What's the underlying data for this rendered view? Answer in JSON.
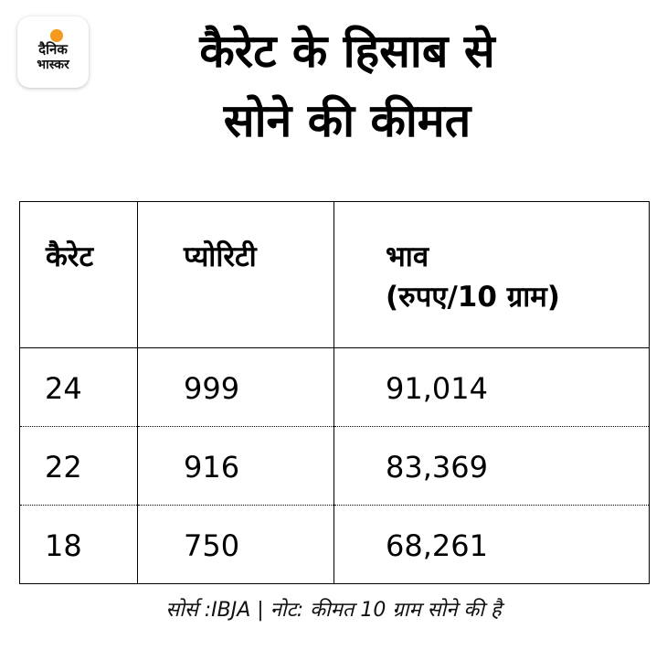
{
  "logo": {
    "line1": "दैनिक",
    "line2": "भास्कर",
    "accent_color": "#f39a1f"
  },
  "title": {
    "line1": "कैरेट के हिसाब से",
    "line2": "सोने की कीमत"
  },
  "table": {
    "headers": {
      "karat": "कैरेट",
      "purity": "प्योरिटी",
      "price_line1": "भाव",
      "price_line2": "(रुपए/10 ग्राम)"
    },
    "rows": [
      {
        "karat": "24",
        "purity": "999",
        "price": "91,014"
      },
      {
        "karat": "22",
        "purity": "916",
        "price": "83,369"
      },
      {
        "karat": "18",
        "purity": "750",
        "price": "68,261"
      }
    ]
  },
  "footnote": "सोर्स :IBJA | नोट: कीमत 10 ग्राम सोने की है"
}
